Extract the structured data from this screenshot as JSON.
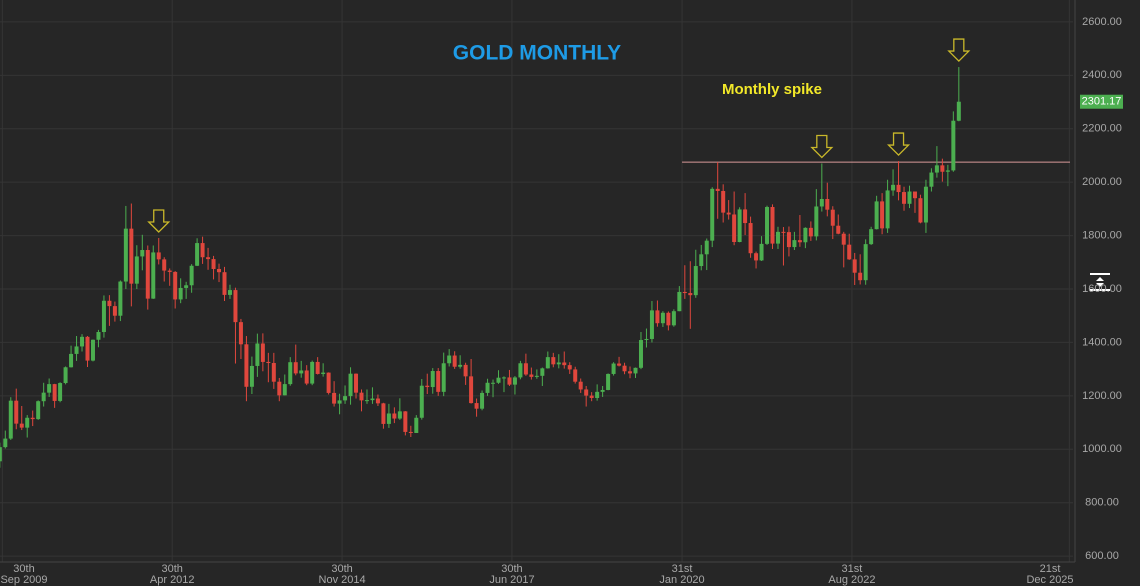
{
  "chart_data": {
    "type": "candlestick",
    "title": "GOLD MONTHLY",
    "annotation": "Monthly spike",
    "up_color": "#4caf50",
    "down_color": "#e0473d",
    "grid": true,
    "ylim": [
      578,
      2682
    ],
    "yticks": [
      {
        "value": 600,
        "label": "600.00"
      },
      {
        "value": 800,
        "label": "800.00"
      },
      {
        "value": 1000,
        "label": "1000.00"
      },
      {
        "value": 1200,
        "label": "1200.00"
      },
      {
        "value": 1400,
        "label": "1400.00"
      },
      {
        "value": 1600,
        "label": "1600.00"
      },
      {
        "value": 1800,
        "label": "1800.00"
      },
      {
        "value": 2000,
        "label": "2000.00"
      },
      {
        "value": 2200,
        "label": "2200.00"
      },
      {
        "value": 2400,
        "label": "2400.00"
      },
      {
        "value": 2600,
        "label": "2600.00"
      }
    ],
    "xlim": [
      "2009-09-17",
      "2026-01-11"
    ],
    "xticks": [
      {
        "value": "2009-09-30",
        "label": [
          "30th",
          "Sep 2009"
        ]
      },
      {
        "value": "2012-04-30",
        "label": [
          "30th",
          "Apr 2012"
        ]
      },
      {
        "value": "2014-11-30",
        "label": [
          "30th",
          "Nov 2014"
        ]
      },
      {
        "value": "2017-06-30",
        "label": [
          "30th",
          "Jun 2017"
        ]
      },
      {
        "value": "2020-01-31",
        "label": [
          "31st",
          "Jan 2020"
        ]
      },
      {
        "value": "2022-08-31",
        "label": [
          "31st",
          "Aug 2022"
        ]
      },
      {
        "value": "2025-12-21",
        "label": [
          "21st",
          "Dec 2025"
        ]
      }
    ],
    "hline": {
      "value": 2075,
      "from": "2020-01-31"
    },
    "arrows": [
      "2012-02",
      "2022-03",
      "2023-05",
      "2024-04"
    ],
    "x": [
      "2009-09",
      "2009-10",
      "2009-11",
      "2009-12",
      "2010-01",
      "2010-02",
      "2010-03",
      "2010-04",
      "2010-05",
      "2010-06",
      "2010-07",
      "2010-08",
      "2010-09",
      "2010-10",
      "2010-11",
      "2010-12",
      "2011-01",
      "2011-02",
      "2011-03",
      "2011-04",
      "2011-05",
      "2011-06",
      "2011-07",
      "2011-08",
      "2011-09",
      "2011-10",
      "2011-11",
      "2011-12",
      "2012-01",
      "2012-02",
      "2012-03",
      "2012-04",
      "2012-05",
      "2012-06",
      "2012-07",
      "2012-08",
      "2012-09",
      "2012-10",
      "2012-11",
      "2012-12",
      "2013-01",
      "2013-02",
      "2013-03",
      "2013-04",
      "2013-05",
      "2013-06",
      "2013-07",
      "2013-08",
      "2013-09",
      "2013-10",
      "2013-11",
      "2013-12",
      "2014-01",
      "2014-02",
      "2014-03",
      "2014-04",
      "2014-05",
      "2014-06",
      "2014-07",
      "2014-08",
      "2014-09",
      "2014-10",
      "2014-11",
      "2014-12",
      "2015-01",
      "2015-02",
      "2015-03",
      "2015-04",
      "2015-05",
      "2015-06",
      "2015-07",
      "2015-08",
      "2015-09",
      "2015-10",
      "2015-11",
      "2015-12",
      "2016-01",
      "2016-02",
      "2016-03",
      "2016-04",
      "2016-05",
      "2016-06",
      "2016-07",
      "2016-08",
      "2016-09",
      "2016-10",
      "2016-11",
      "2016-12",
      "2017-01",
      "2017-02",
      "2017-03",
      "2017-04",
      "2017-05",
      "2017-06",
      "2017-07",
      "2017-08",
      "2017-09",
      "2017-10",
      "2017-11",
      "2017-12",
      "2018-01",
      "2018-02",
      "2018-03",
      "2018-04",
      "2018-05",
      "2018-06",
      "2018-07",
      "2018-08",
      "2018-09",
      "2018-10",
      "2018-11",
      "2018-12",
      "2019-01",
      "2019-02",
      "2019-03",
      "2019-04",
      "2019-05",
      "2019-06",
      "2019-07",
      "2019-08",
      "2019-09",
      "2019-10",
      "2019-11",
      "2019-12",
      "2020-01",
      "2020-02",
      "2020-03",
      "2020-04",
      "2020-05",
      "2020-06",
      "2020-07",
      "2020-08",
      "2020-09",
      "2020-10",
      "2020-11",
      "2020-12",
      "2021-01",
      "2021-02",
      "2021-03",
      "2021-04",
      "2021-05",
      "2021-06",
      "2021-07",
      "2021-08",
      "2021-09",
      "2021-10",
      "2021-11",
      "2021-12",
      "2022-01",
      "2022-02",
      "2022-03",
      "2022-04",
      "2022-05",
      "2022-06",
      "2022-07",
      "2022-08",
      "2022-09",
      "2022-10",
      "2022-11",
      "2022-12",
      "2023-01",
      "2023-02",
      "2023-03",
      "2023-04",
      "2023-05",
      "2023-06",
      "2023-07",
      "2023-08",
      "2023-09",
      "2023-10",
      "2023-11",
      "2023-12",
      "2024-01",
      "2024-02",
      "2024-03",
      "2024-04"
    ],
    "open": [
      955,
      1008,
      1040,
      1182,
      1096,
      1081,
      1118,
      1113,
      1180,
      1212,
      1244,
      1181,
      1248,
      1307,
      1357,
      1385,
      1421,
      1332,
      1410,
      1439,
      1556,
      1536,
      1500,
      1628,
      1826,
      1620,
      1722,
      1746,
      1564,
      1737,
      1711,
      1669,
      1664,
      1561,
      1604,
      1614,
      1687,
      1772,
      1719,
      1712,
      1675,
      1663,
      1578,
      1596,
      1476,
      1393,
      1234,
      1312,
      1396,
      1327,
      1323,
      1253,
      1202,
      1244,
      1326,
      1284,
      1295,
      1246,
      1327,
      1282,
      1287,
      1211,
      1171,
      1183,
      1199,
      1283,
      1212,
      1183,
      1184,
      1190,
      1172,
      1095,
      1134,
      1115,
      1142,
      1065,
      1061,
      1118,
      1238,
      1233,
      1293,
      1215,
      1322,
      1351,
      1309,
      1316,
      1273,
      1173,
      1152,
      1211,
      1249,
      1249,
      1268,
      1269,
      1242,
      1269,
      1322,
      1280,
      1271,
      1275,
      1303,
      1345,
      1318,
      1325,
      1315,
      1299,
      1253,
      1224,
      1201,
      1192,
      1215,
      1222,
      1282,
      1321,
      1313,
      1292,
      1284,
      1305,
      1409,
      1413,
      1520,
      1472,
      1511,
      1464,
      1517,
      1589,
      1585,
      1577,
      1686,
      1730,
      1781,
      1975,
      1967,
      1886,
      1879,
      1776,
      1898,
      1847,
      1734,
      1707,
      1769,
      1907,
      1770,
      1814,
      1813,
      1757,
      1783,
      1775,
      1829,
      1797,
      1909,
      1937,
      1897,
      1837,
      1807,
      1766,
      1711,
      1661,
      1633,
      1768,
      1824,
      1928,
      1827,
      1969,
      1990,
      1963,
      1919,
      1965,
      1940,
      1849,
      1983,
      2036,
      2063,
      2039,
      2044,
      2230
    ],
    "high": [
      1025,
      1070,
      1195,
      1227,
      1162,
      1128,
      1145,
      1183,
      1249,
      1265,
      1245,
      1251,
      1310,
      1388,
      1424,
      1431,
      1424,
      1411,
      1447,
      1576,
      1577,
      1553,
      1632,
      1911,
      1920,
      1764,
      1803,
      1763,
      1763,
      1791,
      1719,
      1677,
      1667,
      1640,
      1627,
      1693,
      1790,
      1796,
      1754,
      1724,
      1695,
      1683,
      1616,
      1605,
      1488,
      1424,
      1347,
      1433,
      1434,
      1361,
      1361,
      1267,
      1280,
      1345,
      1392,
      1331,
      1315,
      1332,
      1345,
      1322,
      1288,
      1255,
      1208,
      1239,
      1307,
      1284,
      1224,
      1224,
      1232,
      1205,
      1174,
      1170,
      1157,
      1191,
      1143,
      1088,
      1128,
      1263,
      1283,
      1304,
      1304,
      1362,
      1375,
      1367,
      1352,
      1324,
      1338,
      1190,
      1220,
      1264,
      1261,
      1296,
      1273,
      1297,
      1274,
      1331,
      1358,
      1306,
      1299,
      1306,
      1366,
      1361,
      1356,
      1366,
      1326,
      1309,
      1265,
      1237,
      1214,
      1243,
      1237,
      1284,
      1326,
      1346,
      1324,
      1310,
      1306,
      1439,
      1452,
      1555,
      1557,
      1517,
      1516,
      1524,
      1611,
      1689,
      1704,
      1747,
      1765,
      1789,
      1981,
      2075,
      1992,
      1933,
      1965,
      1906,
      1959,
      1871,
      1740,
      1798,
      1912,
      1917,
      1833,
      1832,
      1834,
      1814,
      1877,
      1831,
      1853,
      1974,
      2070,
      1998,
      1910,
      1879,
      1814,
      1807,
      1735,
      1730,
      1786,
      1833,
      1949,
      1959,
      2009,
      2048,
      2079,
      1983,
      1987,
      1949,
      1953,
      2009,
      2052,
      2135,
      2088,
      2065,
      2265,
      2431
    ],
    "low": [
      931,
      1003,
      1035,
      1075,
      1072,
      1044,
      1087,
      1110,
      1160,
      1196,
      1155,
      1176,
      1243,
      1306,
      1331,
      1366,
      1308,
      1329,
      1382,
      1418,
      1462,
      1478,
      1480,
      1600,
      1535,
      1600,
      1670,
      1523,
      1563,
      1692,
      1628,
      1612,
      1527,
      1547,
      1563,
      1586,
      1686,
      1694,
      1672,
      1636,
      1626,
      1555,
      1563,
      1321,
      1338,
      1180,
      1207,
      1271,
      1292,
      1251,
      1226,
      1180,
      1202,
      1238,
      1277,
      1268,
      1240,
      1240,
      1280,
      1272,
      1205,
      1160,
      1131,
      1170,
      1167,
      1190,
      1142,
      1170,
      1170,
      1162,
      1077,
      1080,
      1098,
      1110,
      1052,
      1046,
      1061,
      1111,
      1207,
      1208,
      1200,
      1199,
      1310,
      1301,
      1302,
      1241,
      1171,
      1122,
      1146,
      1200,
      1195,
      1245,
      1214,
      1237,
      1205,
      1262,
      1275,
      1261,
      1264,
      1237,
      1302,
      1307,
      1303,
      1302,
      1282,
      1246,
      1211,
      1160,
      1180,
      1182,
      1196,
      1221,
      1276,
      1310,
      1281,
      1266,
      1267,
      1300,
      1381,
      1400,
      1459,
      1458,
      1445,
      1459,
      1517,
      1563,
      1451,
      1567,
      1670,
      1671,
      1757,
      1863,
      1849,
      1860,
      1764,
      1775,
      1802,
      1717,
      1677,
      1705,
      1765,
      1750,
      1750,
      1688,
      1722,
      1746,
      1758,
      1753,
      1780,
      1782,
      1890,
      1872,
      1787,
      1805,
      1681,
      1709,
      1615,
      1617,
      1616,
      1765,
      1823,
      1805,
      1810,
      1949,
      1932,
      1893,
      1903,
      1885,
      1846,
      1810,
      1965,
      2017,
      2002,
      1985,
      2039,
      2228
    ],
    "close": [
      1008,
      1040,
      1182,
      1096,
      1081,
      1118,
      1113,
      1180,
      1212,
      1244,
      1181,
      1248,
      1307,
      1357,
      1385,
      1421,
      1332,
      1410,
      1439,
      1556,
      1536,
      1500,
      1628,
      1826,
      1620,
      1722,
      1746,
      1564,
      1737,
      1711,
      1669,
      1664,
      1561,
      1604,
      1614,
      1687,
      1772,
      1719,
      1712,
      1675,
      1663,
      1578,
      1596,
      1476,
      1393,
      1234,
      1312,
      1396,
      1327,
      1323,
      1253,
      1202,
      1244,
      1326,
      1284,
      1295,
      1246,
      1327,
      1282,
      1287,
      1211,
      1171,
      1183,
      1199,
      1283,
      1212,
      1183,
      1184,
      1190,
      1172,
      1095,
      1134,
      1115,
      1142,
      1065,
      1061,
      1118,
      1238,
      1233,
      1293,
      1215,
      1322,
      1351,
      1309,
      1316,
      1273,
      1173,
      1152,
      1211,
      1249,
      1249,
      1268,
      1269,
      1242,
      1269,
      1322,
      1280,
      1271,
      1275,
      1303,
      1345,
      1318,
      1325,
      1315,
      1299,
      1253,
      1224,
      1201,
      1192,
      1215,
      1222,
      1282,
      1321,
      1313,
      1292,
      1284,
      1305,
      1409,
      1413,
      1520,
      1472,
      1511,
      1464,
      1517,
      1589,
      1585,
      1577,
      1686,
      1730,
      1781,
      1975,
      1967,
      1886,
      1879,
      1776,
      1898,
      1847,
      1734,
      1707,
      1769,
      1907,
      1770,
      1814,
      1813,
      1757,
      1783,
      1775,
      1829,
      1797,
      1909,
      1937,
      1897,
      1837,
      1807,
      1766,
      1711,
      1661,
      1633,
      1768,
      1824,
      1928,
      1827,
      1969,
      1990,
      1963,
      1919,
      1965,
      1940,
      1849,
      1983,
      2036,
      2063,
      2039,
      2044,
      2230,
      2301.17
    ]
  }
}
